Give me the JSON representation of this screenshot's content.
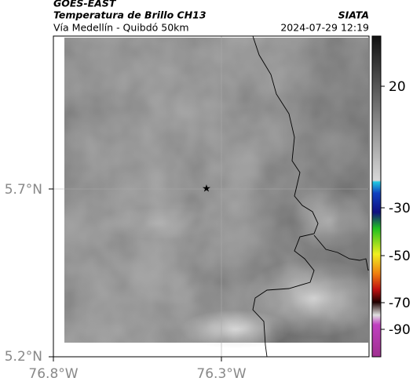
{
  "header": {
    "source": "GOES-EAST",
    "product": "Temperatura de Brillo CH13",
    "route": "Vía Medellín - Quibdó 50km",
    "agency": "SIATA",
    "timestamp": "2024-07-29 12:19"
  },
  "map": {
    "lat_labels": [
      "5.7°N",
      "5.2°N"
    ],
    "lon_labels": [
      "76.8°W",
      "76.3°W"
    ]
  },
  "colorbar": {
    "tick_labels": [
      "20",
      "-30",
      "-50",
      "-70",
      "-90"
    ]
  }
}
